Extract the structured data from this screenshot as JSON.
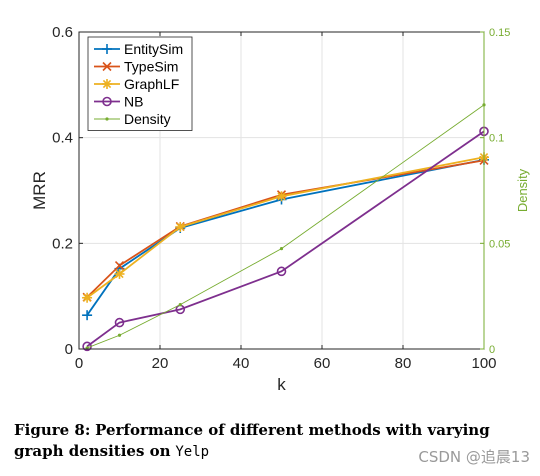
{
  "chart_data": {
    "type": "line",
    "xlabel": "k",
    "ylabel": "MRR",
    "y2label": "Density",
    "xlim": [
      0,
      100
    ],
    "ylim": [
      0,
      0.6
    ],
    "y2lim": [
      0,
      0.15
    ],
    "xticks": [
      "0",
      "20",
      "40",
      "60",
      "80",
      "100"
    ],
    "yticks": [
      "0",
      "0.2",
      "0.4",
      "0.6"
    ],
    "y2ticks": [
      "0",
      "0.05",
      "0.1",
      "0.15"
    ],
    "grid": true,
    "legend_position": "top-left",
    "x": [
      2,
      10,
      25,
      50,
      100
    ],
    "series": [
      {
        "name": "EntitySim",
        "color": "#0072BD",
        "marker": "plus",
        "axis": "left",
        "values": [
          0.064,
          0.152,
          0.229,
          0.283,
          0.358
        ]
      },
      {
        "name": "TypeSim",
        "color": "#D95319",
        "marker": "x",
        "axis": "left",
        "values": [
          0.098,
          0.158,
          0.232,
          0.292,
          0.357
        ]
      },
      {
        "name": "GraphLF",
        "color": "#EDB120",
        "marker": "star",
        "axis": "left",
        "values": [
          0.097,
          0.142,
          0.231,
          0.289,
          0.363
        ]
      },
      {
        "name": "NB",
        "color": "#7E2F8E",
        "marker": "circle",
        "axis": "left",
        "values": [
          0.005,
          0.05,
          0.075,
          0.147,
          0.412
        ]
      },
      {
        "name": "Density",
        "color": "#77AC30",
        "marker": "dot",
        "axis": "right",
        "values": [
          0.0005,
          0.0065,
          0.021,
          0.0475,
          0.1155
        ]
      }
    ]
  },
  "caption": {
    "label": "Figure 8:",
    "text_before": "Performance of different methods with varying graph densities on",
    "dataset": "Yelp"
  },
  "watermark": "CSDN @追晨13"
}
